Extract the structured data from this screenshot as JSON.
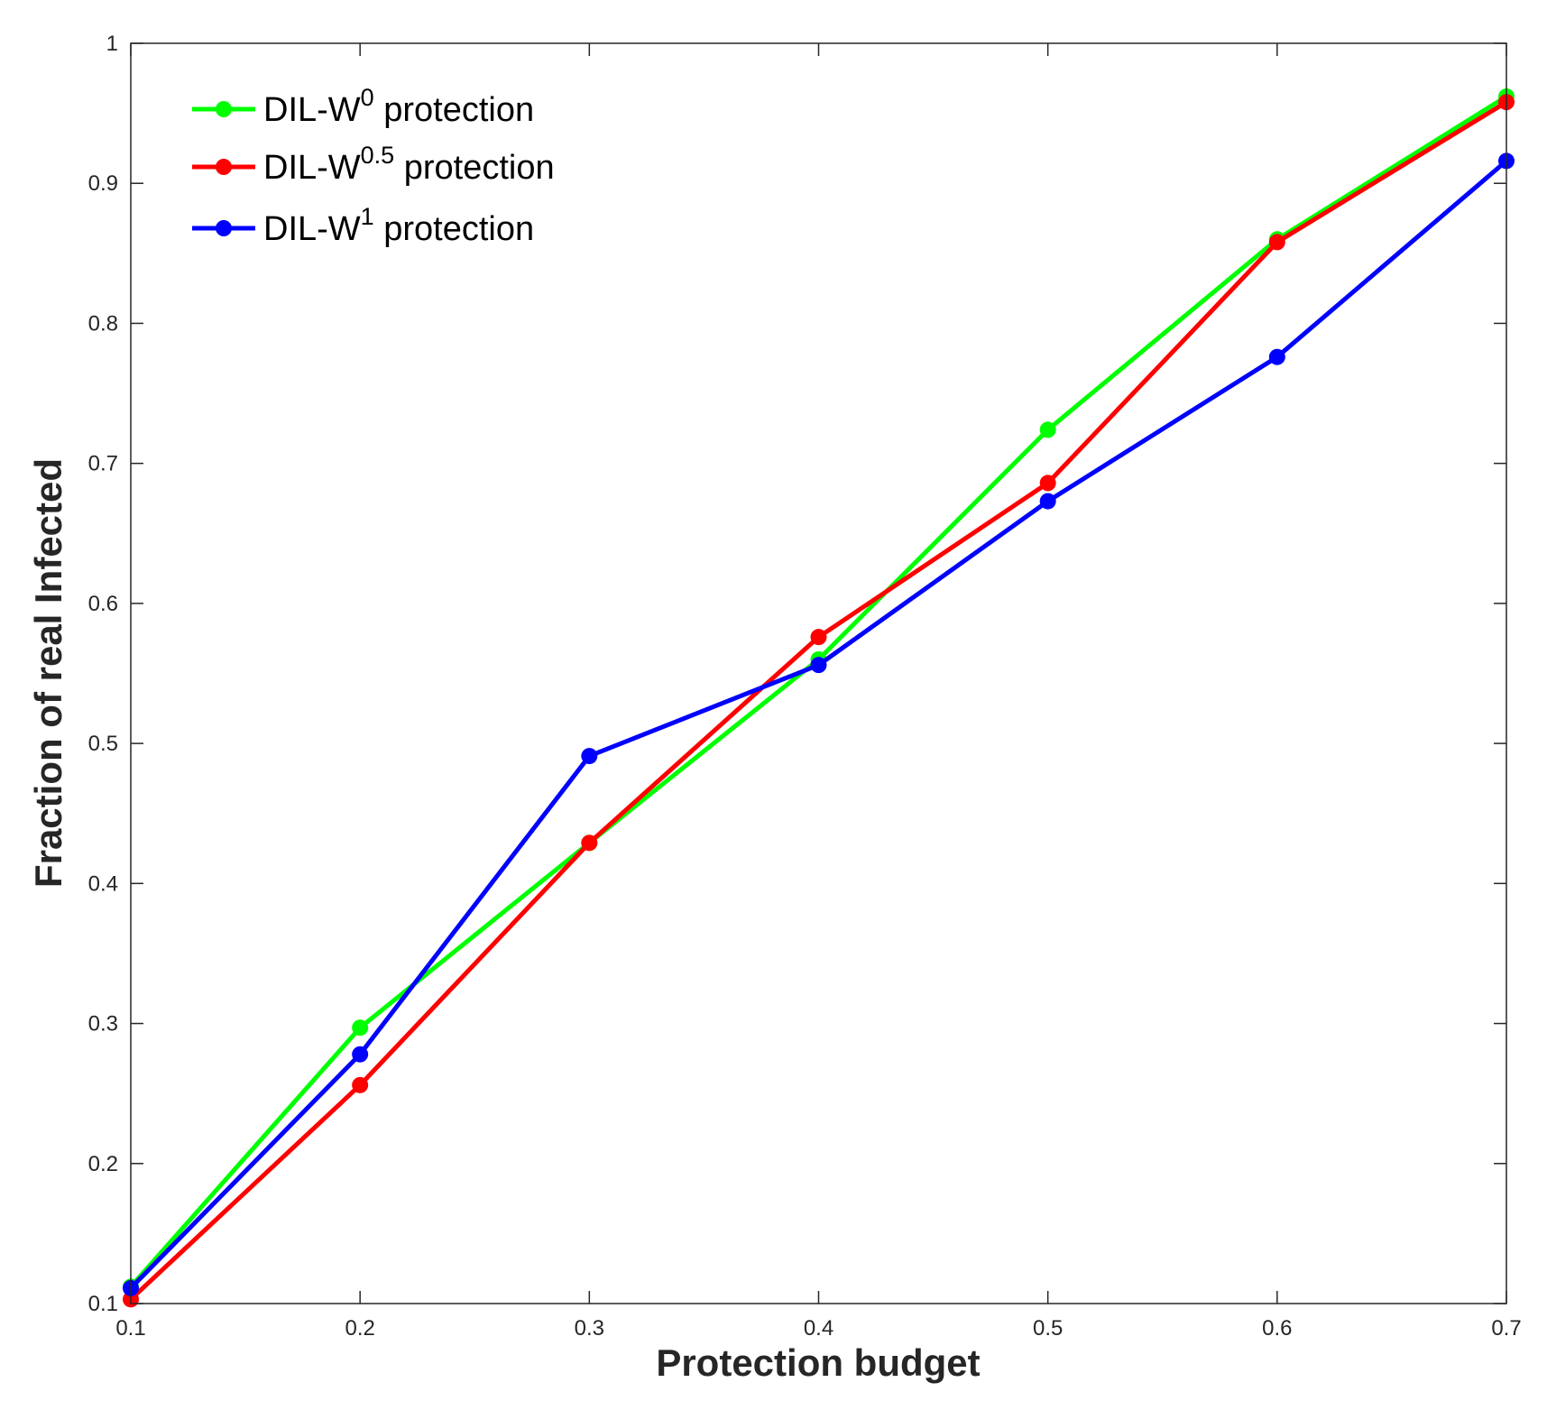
{
  "chart_data": {
    "type": "line",
    "title": "",
    "xlabel": "Protection budget",
    "ylabel": "Fraction of real Infected",
    "x": [
      0.1,
      0.2,
      0.3,
      0.4,
      0.5,
      0.6,
      0.7
    ],
    "xlim": [
      0.1,
      0.7
    ],
    "ylim": [
      0.1,
      1.0
    ],
    "x_ticks": [
      "0.1",
      "0.2",
      "0.3",
      "0.4",
      "0.5",
      "0.6",
      "0.7"
    ],
    "y_ticks": [
      "0.1",
      "0.2",
      "0.3",
      "0.4",
      "0.5",
      "0.6",
      "0.7",
      "0.8",
      "0.9",
      "1"
    ],
    "grid": false,
    "legend_position": "top-left",
    "series": [
      {
        "name": "DIL-W^0 protection",
        "legend_base": "DIL-W",
        "legend_sup": "0",
        "legend_suffix": " protection",
        "color": "#00ff00",
        "values": [
          0.112,
          0.297,
          0.429,
          0.56,
          0.724,
          0.86,
          0.962
        ]
      },
      {
        "name": "DIL-W^0.5 protection",
        "legend_base": "DIL-W",
        "legend_sup": "0.5",
        "legend_suffix": " protection",
        "color": "#ff0000",
        "values": [
          0.103,
          0.256,
          0.429,
          0.576,
          0.686,
          0.858,
          0.958
        ]
      },
      {
        "name": "DIL-W^1 protection",
        "legend_base": "DIL-W",
        "legend_sup": "1",
        "legend_suffix": " protection",
        "color": "#0000ff",
        "values": [
          0.111,
          0.278,
          0.491,
          0.556,
          0.673,
          0.776,
          0.916
        ]
      }
    ]
  }
}
